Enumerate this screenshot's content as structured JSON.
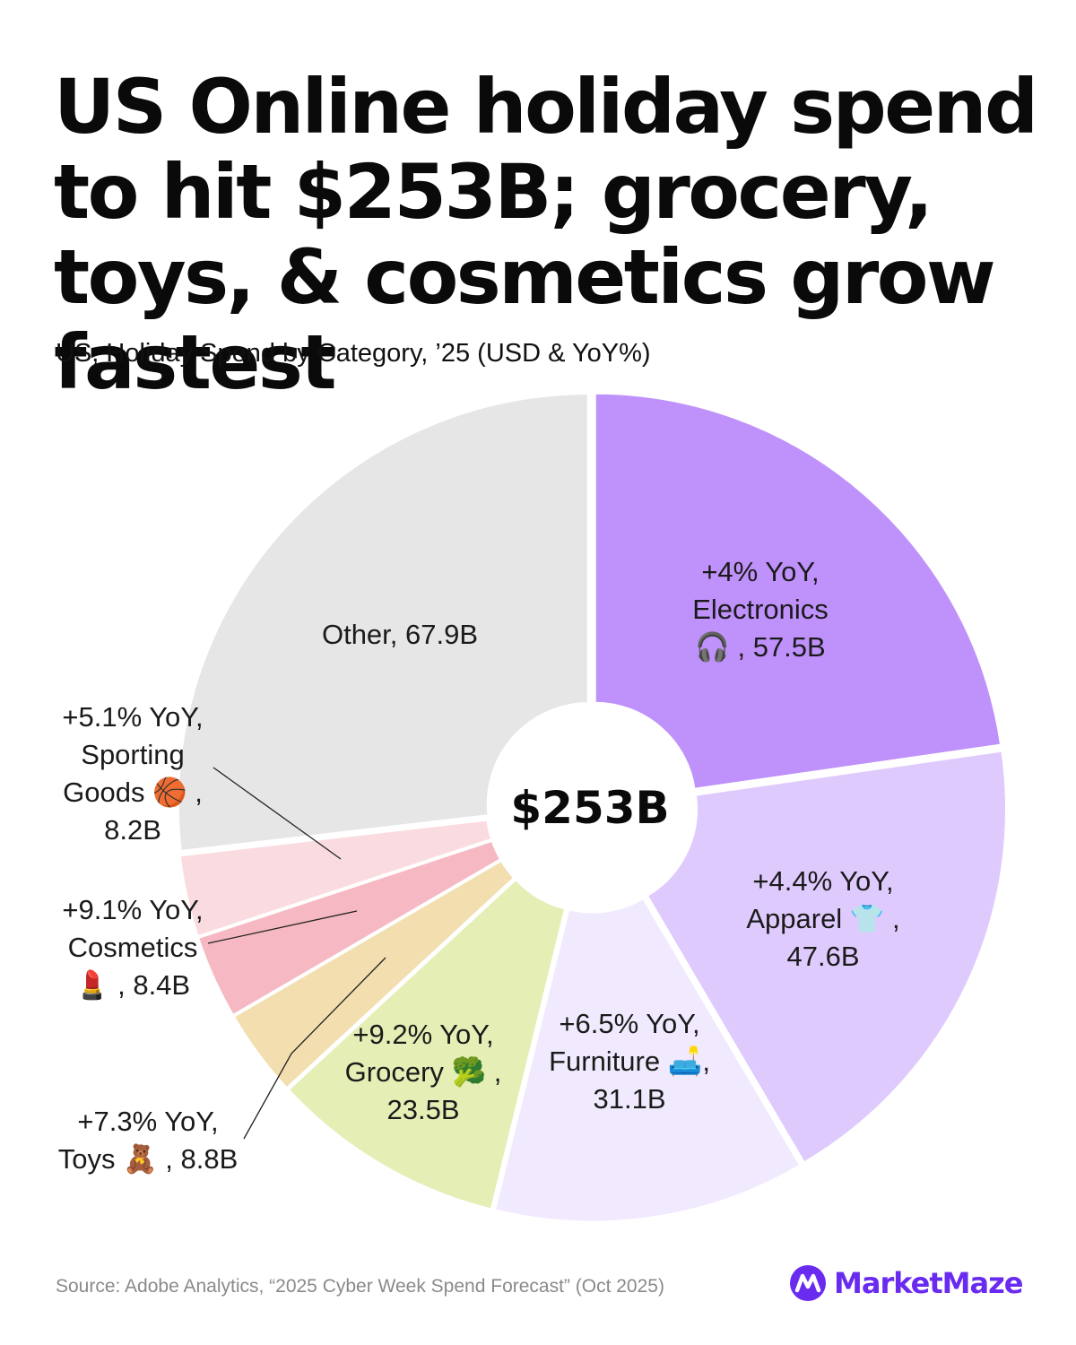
{
  "header": {
    "title": "US Online holiday spend to hit $253B; grocery, toys, & cosmetics grow fastest",
    "subtitle": "US, Holiday Spend by Category, ’25 (USD & YoY%)"
  },
  "chart_data": {
    "type": "pie",
    "style": "donut",
    "center_label": "$253B",
    "total": 253,
    "unit": "B",
    "slices": [
      {
        "name": "Electronics",
        "value": 57.5,
        "yoy": "+4% YoY,",
        "label_lines": [
          "+4% YoY,",
          "Electronics",
          "🎧 , 57.5B"
        ],
        "color": "#bf91fb",
        "icon": "headphones-icon"
      },
      {
        "name": "Apparel",
        "value": 47.6,
        "yoy": "+4.4% YoY,",
        "label_lines": [
          "+4.4% YoY,",
          "Apparel 👕 ,",
          "47.6B"
        ],
        "color": "#dfcafd",
        "icon": "tshirt-icon"
      },
      {
        "name": "Furniture",
        "value": 31.1,
        "yoy": "+6.5% YoY,",
        "label_lines": [
          "+6.5% YoY,",
          "Furniture 🛋️,",
          "31.1B"
        ],
        "color": "#f1eafe",
        "icon": "couch-icon"
      },
      {
        "name": "Grocery",
        "value": 23.5,
        "yoy": "+9.2% YoY,",
        "label_lines": [
          "+9.2% YoY,",
          "Grocery 🥦 ,",
          "23.5B"
        ],
        "color": "#e5eeb5",
        "icon": "broccoli-icon"
      },
      {
        "name": "Toys",
        "value": 8.8,
        "yoy": "+7.3% YoY,",
        "label_lines": [
          "+7.3% YoY,",
          "Toys 🧸 , 8.8B"
        ],
        "color": "#f2deae",
        "icon": "teddy-bear-icon"
      },
      {
        "name": "Cosmetics",
        "value": 8.4,
        "yoy": "+9.1% YoY,",
        "label_lines": [
          "+9.1% YoY,",
          "Cosmetics",
          "💄 , 8.4B"
        ],
        "color": "#f6b9c3",
        "icon": "lipstick-icon"
      },
      {
        "name": "Sporting Goods",
        "value": 8.2,
        "yoy": "+5.1% YoY,",
        "label_lines": [
          "+5.1% YoY,",
          "Sporting",
          "Goods 🏀 ,",
          "8.2B"
        ],
        "color": "#fadce0",
        "icon": "basketball-icon"
      },
      {
        "name": "Other",
        "value": 67.9,
        "label_lines": [
          "Other, 67.9B"
        ],
        "color": "#e6e6e6"
      }
    ]
  },
  "footer": {
    "source": "Source: Adobe Analytics, “2025 Cyber Week Spend Forecast” (Oct 2025)",
    "brand": "MarketMaze",
    "brand_color": "#6a2bf0"
  }
}
